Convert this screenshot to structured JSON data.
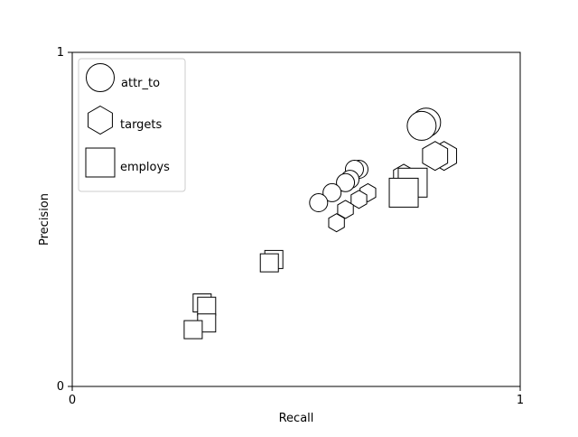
{
  "chart_data": {
    "type": "scatter",
    "title": "",
    "xlabel": "Recall",
    "ylabel": "Precision",
    "xlim": [
      0,
      1
    ],
    "ylim": [
      0,
      1
    ],
    "x_ticks": [
      "0",
      "1"
    ],
    "y_ticks": [
      "0",
      "1"
    ],
    "grid": false,
    "legend_position": "top-left",
    "colors": {
      "marker_fill": "#ffffff",
      "marker_stroke": "#000000"
    },
    "series": [
      {
        "name": "attr_to",
        "marker": "circle",
        "points": [
          {
            "x": 0.79,
            "y": 0.79,
            "size": "large"
          },
          {
            "x": 0.78,
            "y": 0.78,
            "size": "large"
          },
          {
            "x": 0.64,
            "y": 0.65,
            "size": "small"
          },
          {
            "x": 0.63,
            "y": 0.65,
            "size": "small"
          },
          {
            "x": 0.62,
            "y": 0.62,
            "size": "small"
          },
          {
            "x": 0.61,
            "y": 0.61,
            "size": "small"
          },
          {
            "x": 0.58,
            "y": 0.58,
            "size": "small"
          },
          {
            "x": 0.55,
            "y": 0.55,
            "size": "small"
          }
        ]
      },
      {
        "name": "targets",
        "marker": "hexagon",
        "points": [
          {
            "x": 0.83,
            "y": 0.69,
            "size": "large"
          },
          {
            "x": 0.81,
            "y": 0.69,
            "size": "large"
          },
          {
            "x": 0.74,
            "y": 0.63,
            "size": "medium"
          },
          {
            "x": 0.66,
            "y": 0.58,
            "size": "small"
          },
          {
            "x": 0.64,
            "y": 0.56,
            "size": "small"
          },
          {
            "x": 0.61,
            "y": 0.53,
            "size": "small"
          },
          {
            "x": 0.59,
            "y": 0.49,
            "size": "small"
          }
        ]
      },
      {
        "name": "employs",
        "marker": "square",
        "points": [
          {
            "x": 0.76,
            "y": 0.61,
            "size": "large"
          },
          {
            "x": 0.74,
            "y": 0.58,
            "size": "large"
          },
          {
            "x": 0.45,
            "y": 0.38,
            "size": "small"
          },
          {
            "x": 0.44,
            "y": 0.37,
            "size": "small"
          },
          {
            "x": 0.29,
            "y": 0.25,
            "size": "small"
          },
          {
            "x": 0.3,
            "y": 0.24,
            "size": "small"
          },
          {
            "x": 0.3,
            "y": 0.19,
            "size": "small"
          },
          {
            "x": 0.27,
            "y": 0.17,
            "size": "small"
          }
        ]
      }
    ]
  }
}
